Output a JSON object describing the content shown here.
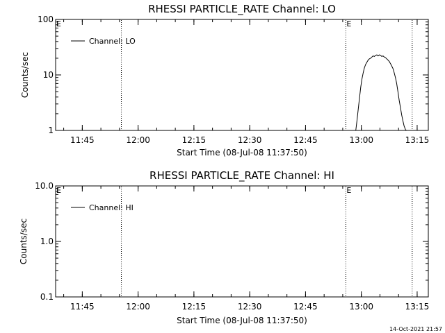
{
  "chart_data": [
    {
      "type": "line",
      "title": "RHESSI PARTICLE_RATE Channel: LO",
      "xlabel": "Start Time (08-Jul-08 11:37:50)",
      "ylabel": "Counts/sec",
      "yscale": "log",
      "ylim": [
        1,
        100
      ],
      "xlim": [
        "11:37:50",
        "13:18:00"
      ],
      "x_ticks": [
        "11:45",
        "12:00",
        "12:15",
        "12:30",
        "12:45",
        "13:00",
        "13:15"
      ],
      "y_ticks": [
        "1",
        "10",
        "100"
      ],
      "legend": {
        "entries": [
          "Channel: LO"
        ],
        "placement": "top-left"
      },
      "markers": [
        {
          "label": "E",
          "time": "11:37:50"
        },
        {
          "label": "",
          "time": "11:55:30"
        },
        {
          "label": "E",
          "time": "12:55:50"
        },
        {
          "label": "",
          "time": "13:13:40"
        }
      ],
      "series": [
        {
          "name": "Channel: LO",
          "x": [
            "12:58:30",
            "12:58:50",
            "12:59:10",
            "12:59:30",
            "12:59:50",
            "13:00:10",
            "13:00:30",
            "13:00:50",
            "13:01:10",
            "13:01:30",
            "13:01:50",
            "13:02:10",
            "13:02:30",
            "13:02:50",
            "13:03:10",
            "13:03:30",
            "13:03:50",
            "13:04:10",
            "13:04:30",
            "13:04:50",
            "13:05:10",
            "13:05:30",
            "13:05:50",
            "13:06:10",
            "13:06:30",
            "13:06:50",
            "13:07:10",
            "13:07:30",
            "13:07:50",
            "13:08:10",
            "13:08:30",
            "13:08:50",
            "13:09:10",
            "13:09:30",
            "13:09:50",
            "13:10:10",
            "13:10:30",
            "13:10:50",
            "13:11:10",
            "13:11:30",
            "13:11:50",
            "13:12:00"
          ],
          "values": [
            1,
            1.5,
            2.4,
            3.8,
            6,
            8.5,
            11,
            13.5,
            15.5,
            17,
            18.5,
            19.5,
            20,
            21,
            22,
            21.5,
            22.5,
            23,
            22,
            23,
            22.5,
            21.5,
            22,
            21,
            20.5,
            19.5,
            18.5,
            17.5,
            16,
            14.5,
            13,
            11,
            9,
            7,
            5,
            3.5,
            2.6,
            1.9,
            1.5,
            1.2,
            1.05,
            1
          ]
        }
      ]
    },
    {
      "type": "line",
      "title": "RHESSI PARTICLE_RATE Channel: HI",
      "xlabel": "Start Time (08-Jul-08 11:37:50)",
      "ylabel": "Counts/sec",
      "yscale": "log",
      "ylim": [
        0.1,
        10
      ],
      "xlim": [
        "11:37:50",
        "13:18:00"
      ],
      "x_ticks": [
        "11:45",
        "12:00",
        "12:15",
        "12:30",
        "12:45",
        "13:00",
        "13:15"
      ],
      "y_ticks": [
        "0.1",
        "1.0",
        "10.0"
      ],
      "legend": {
        "entries": [
          "Channel: HI"
        ],
        "placement": "top-left"
      },
      "markers": [
        {
          "label": "E",
          "time": "11:37:50"
        },
        {
          "label": "",
          "time": "11:55:30"
        },
        {
          "label": "E",
          "time": "12:55:50"
        },
        {
          "label": "",
          "time": "13:13:40"
        }
      ],
      "series": [
        {
          "name": "Channel: HI",
          "x": [],
          "values": []
        }
      ]
    }
  ],
  "footer": {
    "timestamp": "14-Oct-2021 21:57"
  }
}
